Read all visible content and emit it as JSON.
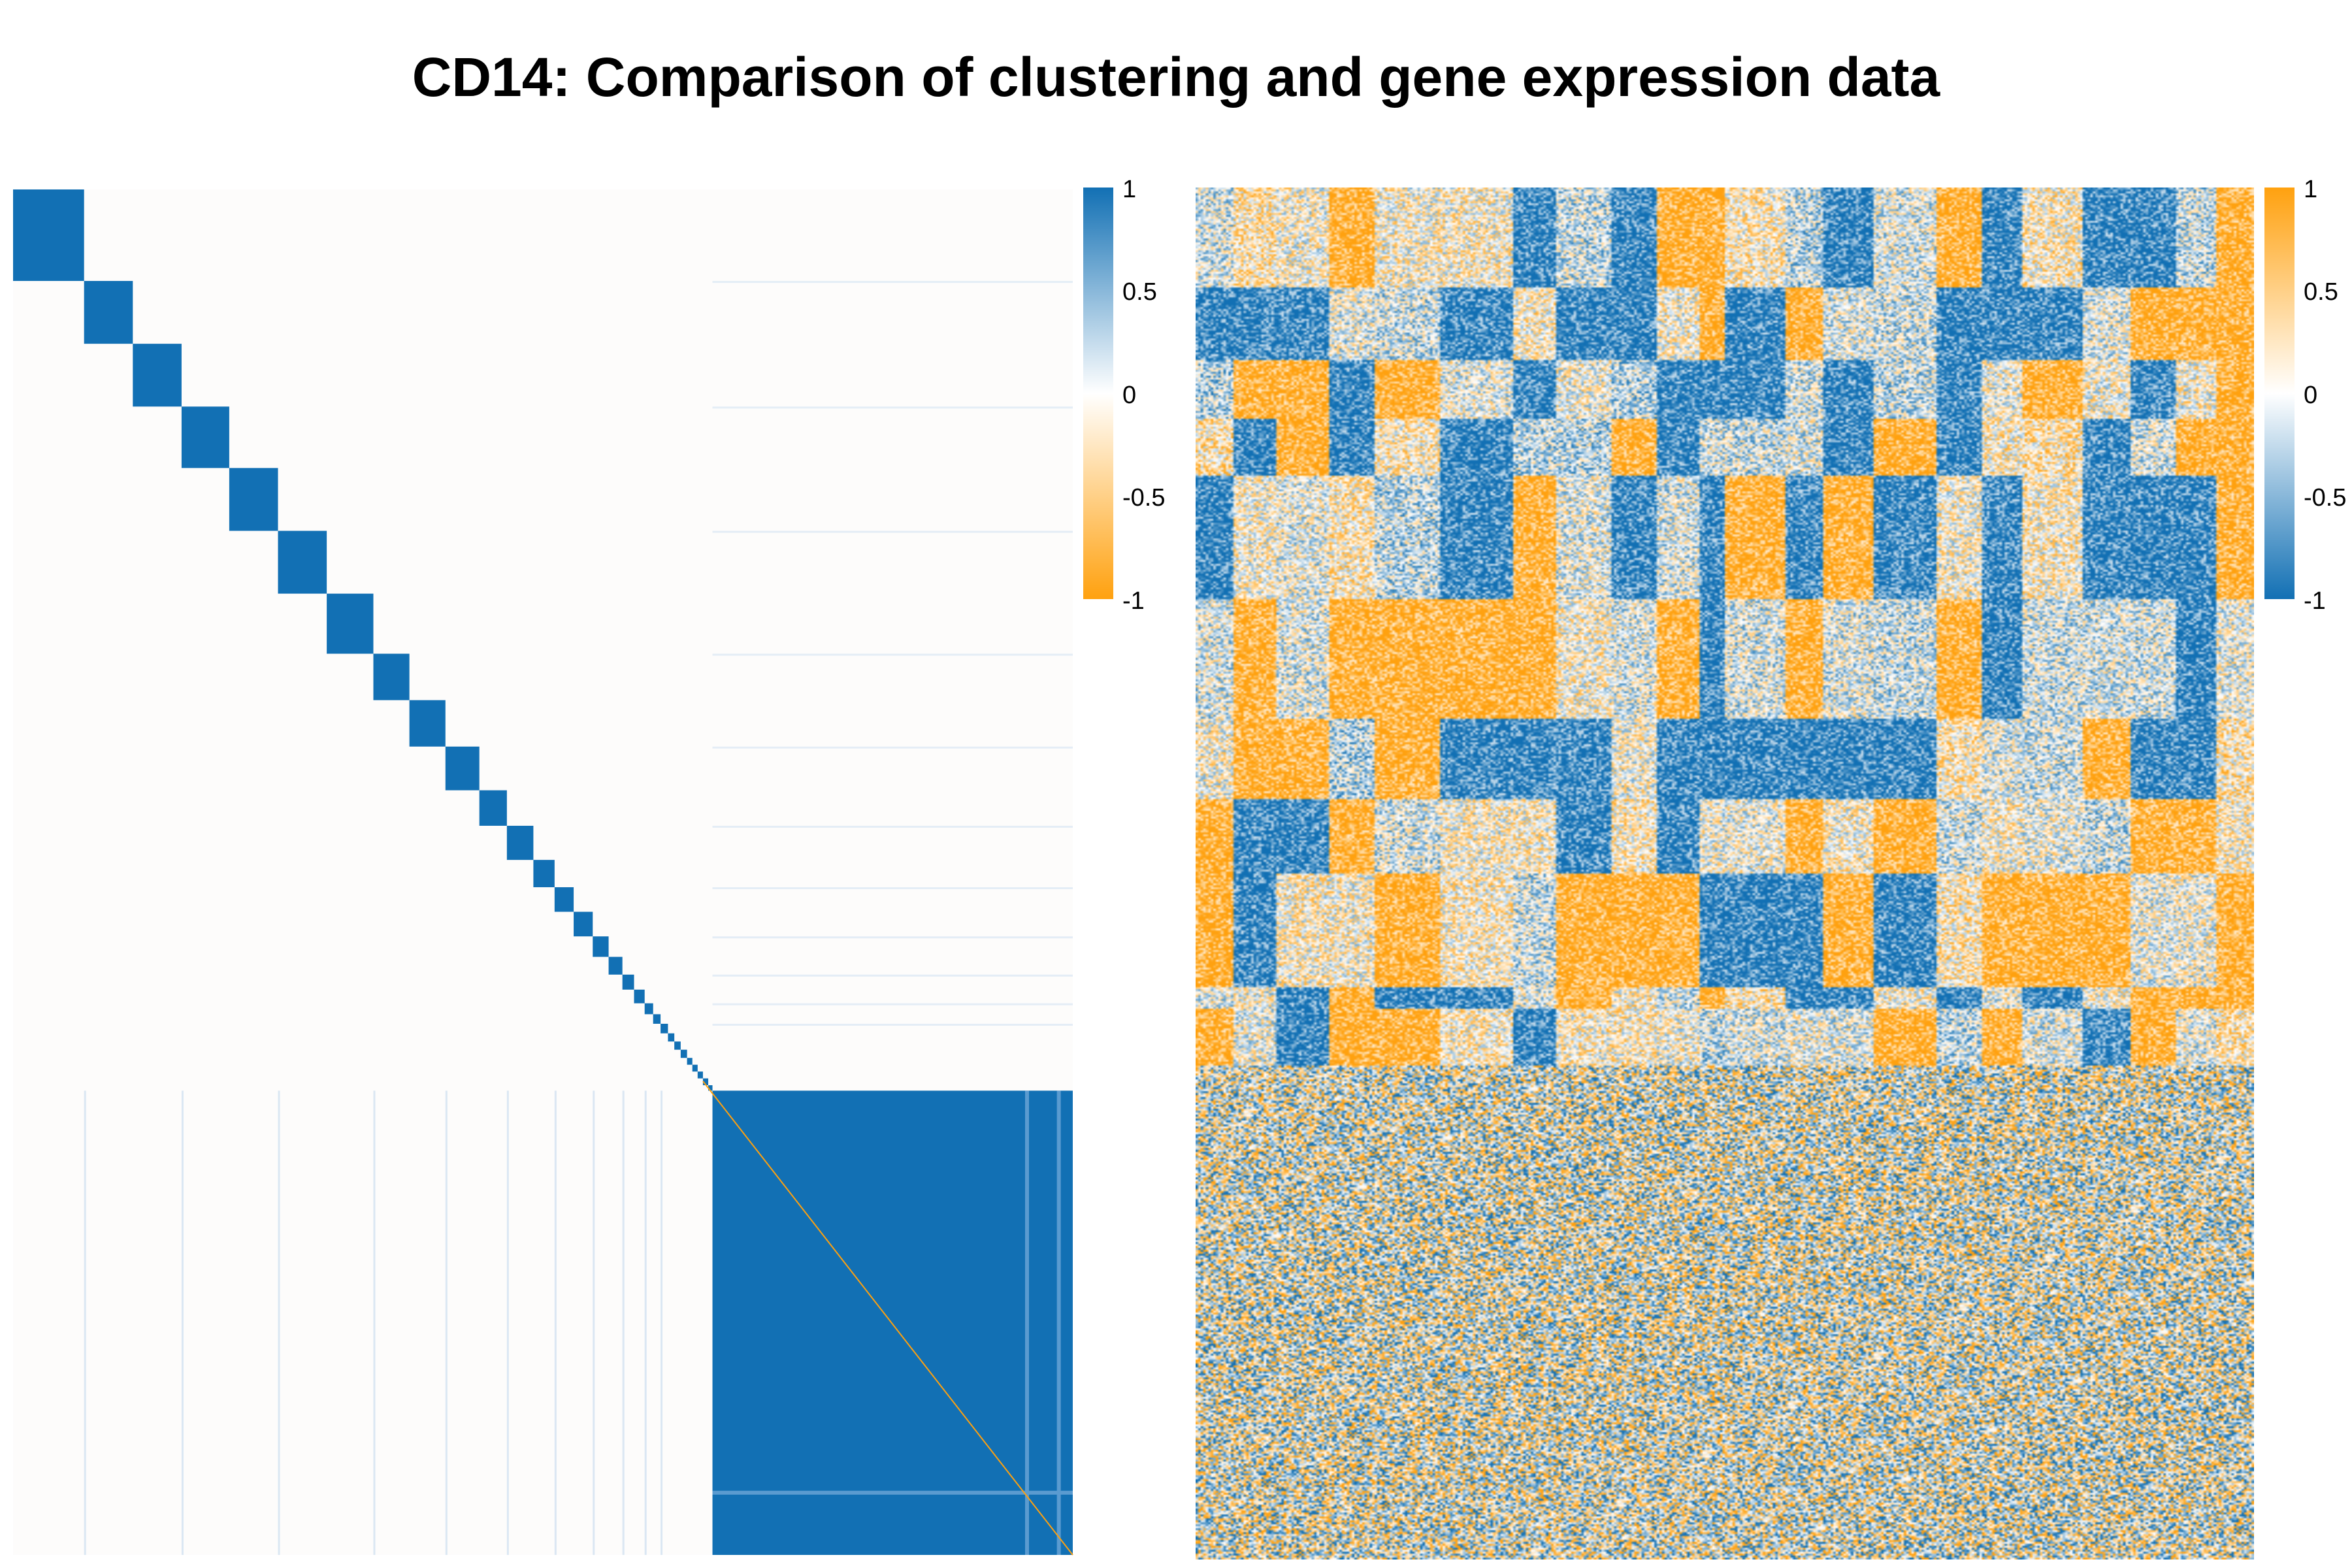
{
  "title": "CD14: Comparison of clustering and gene expression data",
  "colors": {
    "blue": "#1270b4",
    "white": "#ffffff",
    "orange": "#ffa10f",
    "background": "#fdfcfb"
  },
  "chart_data": [
    {
      "type": "heatmap",
      "name": "",
      "description_of_content": "",
      "diagonal_blocks": [
        {
          "start": 0.0,
          "end": 0.067
        },
        {
          "start": 0.067,
          "end": 0.113
        },
        {
          "start": 0.113,
          "end": 0.159
        },
        {
          "start": 0.159,
          "end": 0.204
        },
        {
          "start": 0.204,
          "end": 0.25
        },
        {
          "start": 0.25,
          "end": 0.296
        },
        {
          "start": 0.296,
          "end": 0.34
        },
        {
          "start": 0.34,
          "end": 0.374
        },
        {
          "start": 0.374,
          "end": 0.408
        },
        {
          "start": 0.408,
          "end": 0.44
        },
        {
          "start": 0.44,
          "end": 0.466
        },
        {
          "start": 0.466,
          "end": 0.491
        },
        {
          "start": 0.491,
          "end": 0.511
        },
        {
          "start": 0.511,
          "end": 0.529
        },
        {
          "start": 0.529,
          "end": 0.547
        },
        {
          "start": 0.547,
          "end": 0.562
        },
        {
          "start": 0.562,
          "end": 0.575
        },
        {
          "start": 0.575,
          "end": 0.586
        },
        {
          "start": 0.586,
          "end": 0.596
        },
        {
          "start": 0.596,
          "end": 0.604
        },
        {
          "start": 0.604,
          "end": 0.611
        },
        {
          "start": 0.611,
          "end": 0.618
        },
        {
          "start": 0.618,
          "end": 0.624
        },
        {
          "start": 0.624,
          "end": 0.63
        },
        {
          "start": 0.63,
          "end": 0.636
        },
        {
          "start": 0.636,
          "end": 0.641
        },
        {
          "start": 0.641,
          "end": 0.646
        },
        {
          "start": 0.646,
          "end": 0.651
        },
        {
          "start": 0.651,
          "end": 0.656
        },
        {
          "start": 0.656,
          "end": 0.66
        },
        {
          "start": 0.66,
          "end": 1.0
        }
      ],
      "colorbar": {
        "ticks": [
          "1",
          "0.5",
          "0",
          "-0.5",
          "-1"
        ],
        "top_color": "#1270b4",
        "mid_color": "#ffffff",
        "bottom_color": "#ffa10f"
      }
    },
    {
      "type": "heatmap",
      "name": "",
      "row_bands": [
        0.0,
        0.072,
        0.125,
        0.168,
        0.21,
        0.3,
        0.386,
        0.445,
        0.5,
        0.582,
        0.598,
        0.64,
        0.671,
        1.0
      ],
      "col_bands": [
        0.0,
        0.034,
        0.076,
        0.124,
        0.168,
        0.23,
        0.3,
        0.34,
        0.392,
        0.434,
        0.474,
        0.5,
        0.556,
        0.592,
        0.64,
        0.698,
        0.742,
        0.78,
        0.838,
        0.882,
        0.924,
        0.962,
        1.0
      ],
      "structured_fraction": 0.64,
      "colorbar": {
        "ticks": [
          "1",
          "0.5",
          "0",
          "-0.5",
          "-1"
        ],
        "top_color": "#ffa10f",
        "mid_color": "#ffffff",
        "bottom_color": "#1270b4"
      }
    }
  ]
}
